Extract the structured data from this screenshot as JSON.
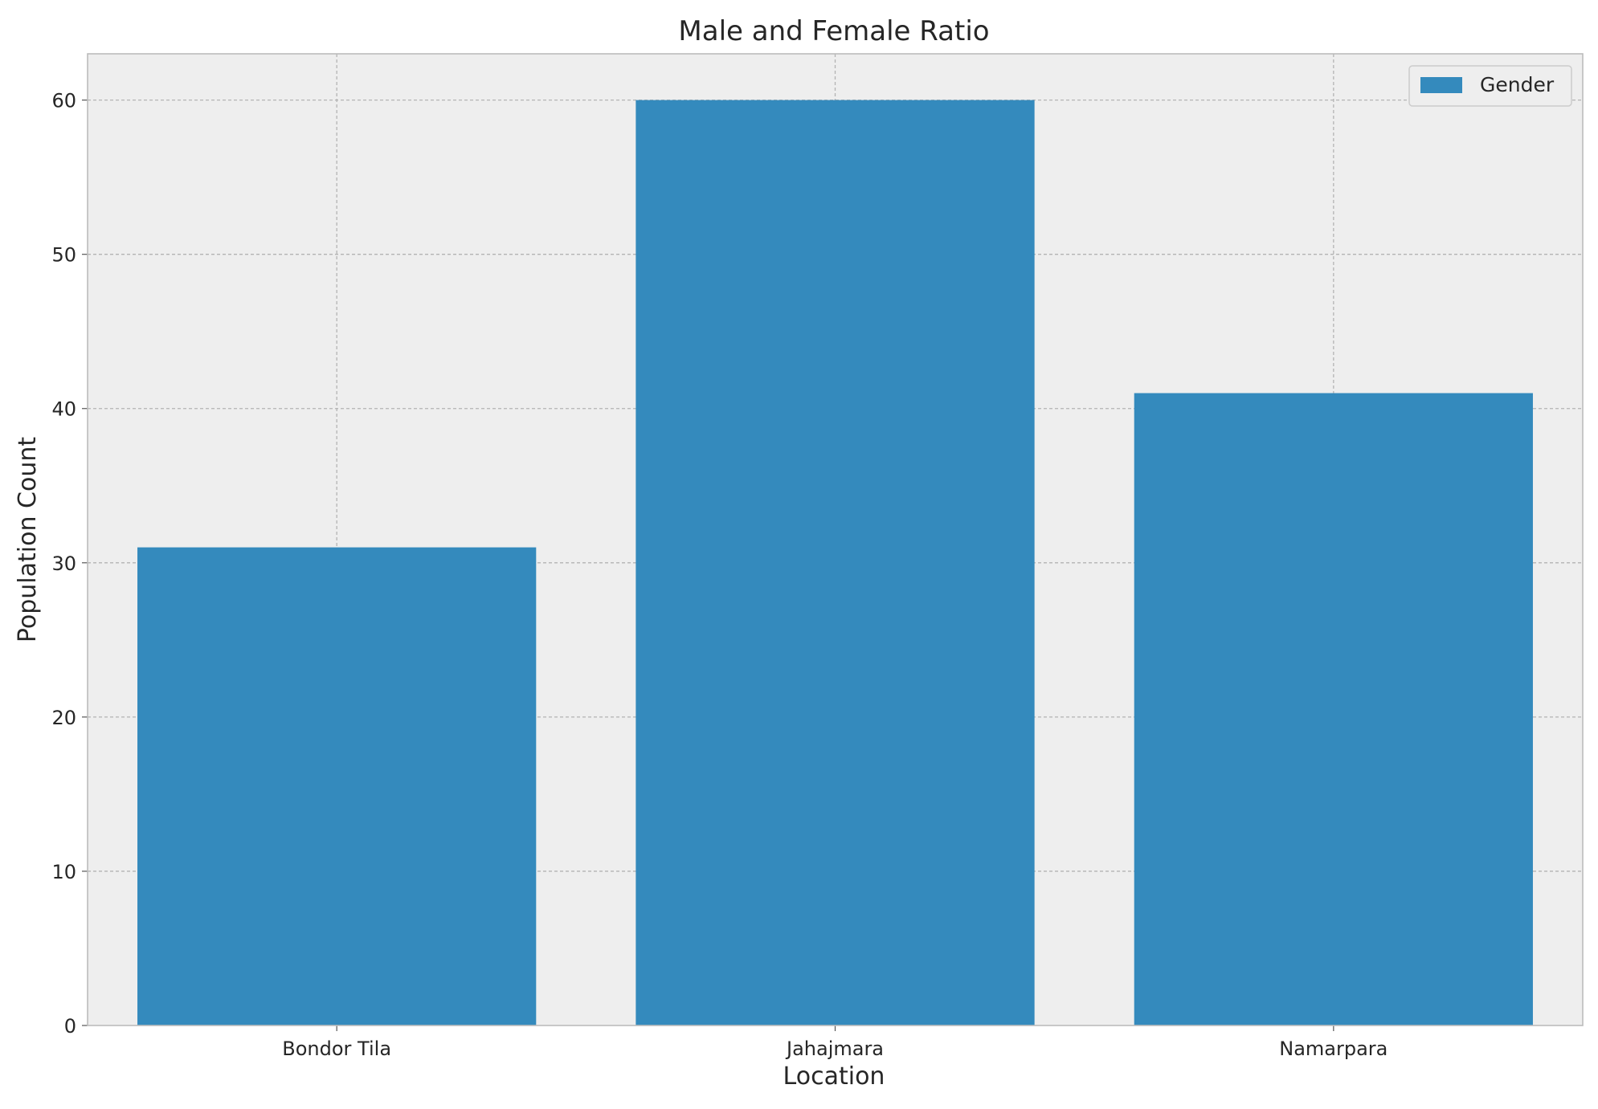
{
  "chart_data": {
    "type": "bar",
    "title": "Male and Female Ratio",
    "xlabel": "Location",
    "ylabel": "Population Count",
    "categories": [
      "Bondor Tila",
      "Jahajmara",
      "Namarpara"
    ],
    "series": [
      {
        "name": "Gender",
        "values": [
          31,
          60,
          41
        ],
        "color": "#348abd"
      }
    ],
    "ylim": [
      0,
      63
    ],
    "yticks": [
      0,
      10,
      20,
      30,
      40,
      50,
      60
    ],
    "grid": true,
    "legend_position": "top-right",
    "colors": {
      "plot_background": "#eeeeee",
      "grid": "#b3b3b3",
      "spine": "#bcbcbc"
    }
  }
}
